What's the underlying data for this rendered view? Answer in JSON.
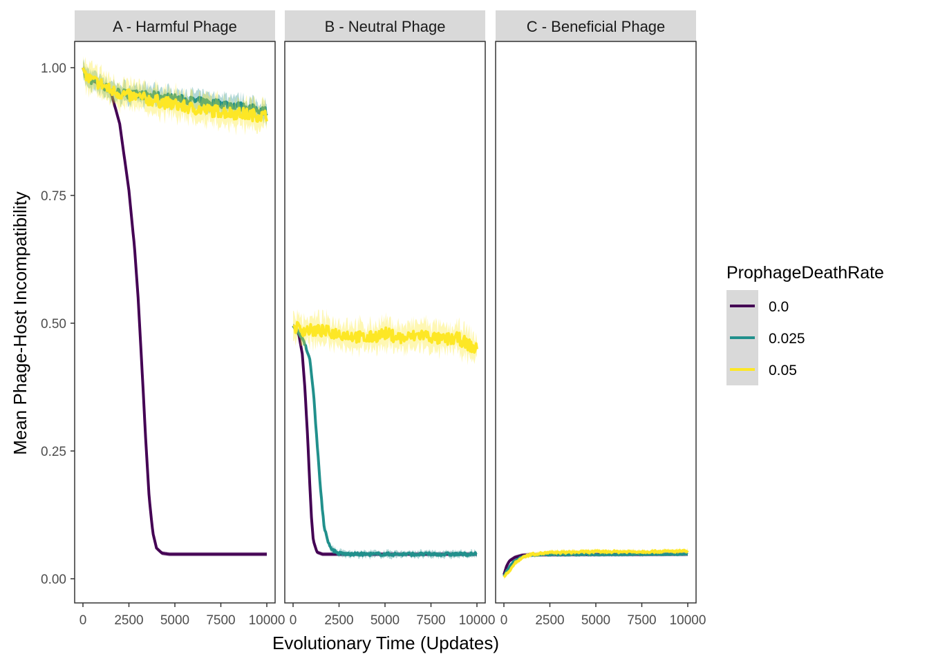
{
  "chart_data": {
    "type": "line",
    "xlabel": "Evolutionary Time (Updates)",
    "ylabel": "Mean Phage-Host Incompatibility",
    "xlim": [
      0,
      10000
    ],
    "ylim": [
      0,
      1
    ],
    "x_ticks": [
      0,
      2500,
      5000,
      7500,
      10000
    ],
    "x_tick_labels": [
      "0",
      "2500",
      "5000",
      "7500",
      "10000"
    ],
    "y_ticks": [
      0,
      0.25,
      0.5,
      0.75,
      1.0
    ],
    "y_tick_labels": [
      "0.00",
      "0.25",
      "0.50",
      "0.75",
      "1.00"
    ],
    "grid": false,
    "legend": {
      "title": "ProphageDeathRate",
      "placement": "right",
      "entries": [
        {
          "label": "0.0",
          "color": "#440154"
        },
        {
          "label": "0.025",
          "color": "#21908C"
        },
        {
          "label": "0.05",
          "color": "#FDE725"
        }
      ]
    },
    "panels": [
      {
        "title": "A - Harmful Phage",
        "series": [
          {
            "name": "0.0",
            "color": "#440154",
            "noise": 0,
            "points": [
              [
                0,
                1.0
              ],
              [
                200,
                0.98
              ],
              [
                500,
                0.975
              ],
              [
                1000,
                0.968
              ],
              [
                1500,
                0.955
              ],
              [
                2000,
                0.89
              ],
              [
                2500,
                0.76
              ],
              [
                2800,
                0.65
              ],
              [
                3000,
                0.55
              ],
              [
                3200,
                0.42
              ],
              [
                3400,
                0.28
              ],
              [
                3600,
                0.16
              ],
              [
                3800,
                0.09
              ],
              [
                4000,
                0.06
              ],
              [
                4300,
                0.05
              ],
              [
                4700,
                0.048
              ],
              [
                10000,
                0.048
              ]
            ]
          },
          {
            "name": "0.025",
            "color": "#21908C",
            "noise": 0.008,
            "points": [
              [
                0,
                1.0
              ],
              [
                200,
                0.98
              ],
              [
                500,
                0.975
              ],
              [
                1000,
                0.968
              ],
              [
                1500,
                0.955
              ],
              [
                2500,
                0.948
              ],
              [
                4000,
                0.945
              ],
              [
                6000,
                0.935
              ],
              [
                8000,
                0.928
              ],
              [
                10000,
                0.915
              ]
            ]
          },
          {
            "name": "0.05",
            "color": "#FDE725",
            "noise": 0.012,
            "points": [
              [
                0,
                1.0
              ],
              [
                200,
                0.98
              ],
              [
                500,
                0.975
              ],
              [
                1000,
                0.968
              ],
              [
                1500,
                0.955
              ],
              [
                2500,
                0.945
              ],
              [
                4000,
                0.935
              ],
              [
                6000,
                0.92
              ],
              [
                8000,
                0.912
              ],
              [
                10000,
                0.905
              ]
            ]
          }
        ]
      },
      {
        "title": "B - Neutral Phage",
        "series": [
          {
            "name": "0.0",
            "color": "#440154",
            "noise": 0,
            "points": [
              [
                0,
                0.495
              ],
              [
                300,
                0.48
              ],
              [
                500,
                0.44
              ],
              [
                650,
                0.37
              ],
              [
                800,
                0.27
              ],
              [
                900,
                0.19
              ],
              [
                1000,
                0.12
              ],
              [
                1100,
                0.075
              ],
              [
                1300,
                0.052
              ],
              [
                1600,
                0.048
              ],
              [
                10000,
                0.048
              ]
            ]
          },
          {
            "name": "0.025",
            "color": "#21908C",
            "noise": 0.003,
            "points": [
              [
                0,
                0.495
              ],
              [
                300,
                0.48
              ],
              [
                600,
                0.465
              ],
              [
                900,
                0.43
              ],
              [
                1100,
                0.37
              ],
              [
                1300,
                0.27
              ],
              [
                1500,
                0.17
              ],
              [
                1700,
                0.1
              ],
              [
                2000,
                0.062
              ],
              [
                2400,
                0.05
              ],
              [
                3000,
                0.048
              ],
              [
                10000,
                0.048
              ]
            ]
          },
          {
            "name": "0.05",
            "color": "#FDE725",
            "noise": 0.012,
            "points": [
              [
                0,
                0.495
              ],
              [
                500,
                0.487
              ],
              [
                1500,
                0.485
              ],
              [
                3000,
                0.477
              ],
              [
                4000,
                0.47
              ],
              [
                5000,
                0.48
              ],
              [
                6000,
                0.47
              ],
              [
                7000,
                0.478
              ],
              [
                8000,
                0.468
              ],
              [
                9000,
                0.47
              ],
              [
                10000,
                0.448
              ]
            ]
          }
        ]
      },
      {
        "title": "C - Beneficial Phage",
        "series": [
          {
            "name": "0.0",
            "color": "#440154",
            "noise": 0,
            "points": [
              [
                0,
                0.008
              ],
              [
                150,
                0.025
              ],
              [
                300,
                0.035
              ],
              [
                600,
                0.042
              ],
              [
                1000,
                0.046
              ],
              [
                1500,
                0.047
              ],
              [
                10000,
                0.048
              ]
            ]
          },
          {
            "name": "0.025",
            "color": "#21908C",
            "noise": 0.001,
            "points": [
              [
                0,
                0.005
              ],
              [
                200,
                0.018
              ],
              [
                500,
                0.032
              ],
              [
                800,
                0.04
              ],
              [
                1200,
                0.045
              ],
              [
                2000,
                0.047
              ],
              [
                10000,
                0.048
              ]
            ]
          },
          {
            "name": "0.05",
            "color": "#FDE725",
            "noise": 0.002,
            "points": [
              [
                0,
                0.003
              ],
              [
                300,
                0.016
              ],
              [
                600,
                0.03
              ],
              [
                1000,
                0.042
              ],
              [
                1500,
                0.048
              ],
              [
                2500,
                0.051
              ],
              [
                5000,
                0.053
              ],
              [
                7500,
                0.053
              ],
              [
                10000,
                0.054
              ]
            ]
          }
        ]
      }
    ]
  }
}
